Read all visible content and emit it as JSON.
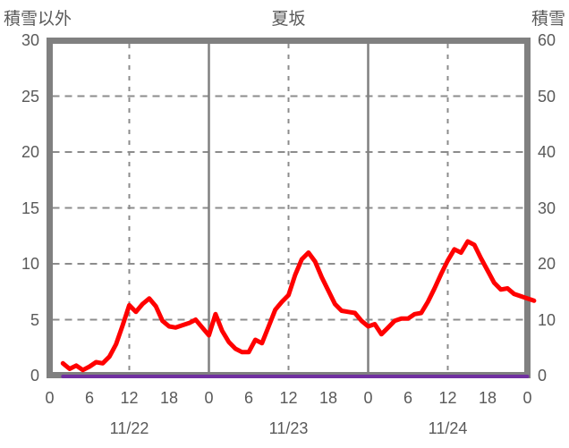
{
  "header": {
    "left_axis_title": "積雪以外",
    "chart_title": "夏坂",
    "right_axis_title": "積雪"
  },
  "colors": {
    "frame": "#808080",
    "grid": "#8c8c8c",
    "text": "#595959",
    "series_non_snow": "#ff0000",
    "series_snow": "#7030a0",
    "background": "#ffffff"
  },
  "chart_data": {
    "type": "line",
    "title": "夏坂",
    "left_axis": {
      "title": "積雪以外",
      "min": 0,
      "max": 30,
      "ticks": [
        30,
        25,
        20,
        15,
        10,
        5,
        0
      ]
    },
    "right_axis": {
      "title": "積雪",
      "min": 0,
      "max": 60,
      "ticks": [
        60,
        50,
        40,
        30,
        20,
        10,
        0
      ]
    },
    "x_axis": {
      "total_hours": 72,
      "hour_ticks": [
        {
          "hour": 0,
          "label": "0"
        },
        {
          "hour": 6,
          "label": "6"
        },
        {
          "hour": 12,
          "label": "12"
        },
        {
          "hour": 18,
          "label": "18"
        },
        {
          "hour": 24,
          "label": "0"
        },
        {
          "hour": 30,
          "label": "6"
        },
        {
          "hour": 36,
          "label": "12"
        },
        {
          "hour": 42,
          "label": "18"
        },
        {
          "hour": 48,
          "label": "0"
        },
        {
          "hour": 54,
          "label": "6"
        },
        {
          "hour": 60,
          "label": "12"
        },
        {
          "hour": 66,
          "label": "18"
        },
        {
          "hour": 72,
          "label": "0"
        }
      ],
      "day_labels": [
        {
          "label": "11/22",
          "center_hour": 12
        },
        {
          "label": "11/23",
          "center_hour": 36
        },
        {
          "label": "11/24",
          "center_hour": 60
        }
      ]
    },
    "grid": {
      "horizontal_dashed_left_values": [
        25,
        20,
        15,
        10,
        5
      ],
      "vertical_solid_hours": [
        24,
        48
      ],
      "vertical_dashed_hours": [
        12,
        36,
        60
      ]
    },
    "series": [
      {
        "name": "積雪以外",
        "axis": "left",
        "color": "#ff0000",
        "stroke_width": 5,
        "start_hour": 2,
        "step_hours": 1,
        "values": [
          1.1,
          0.6,
          0.9,
          0.5,
          0.8,
          1.2,
          1.1,
          1.7,
          2.8,
          4.5,
          6.3,
          5.7,
          6.4,
          6.9,
          6.2,
          4.9,
          4.4,
          4.3,
          4.5,
          4.7,
          5.0,
          4.3,
          3.6,
          5.5,
          4.0,
          3.0,
          2.4,
          2.1,
          2.1,
          3.2,
          2.9,
          4.4,
          5.9,
          6.6,
          7.2,
          9.0,
          10.4,
          11.0,
          10.2,
          8.8,
          7.6,
          6.4,
          5.8,
          5.7,
          5.6,
          4.9,
          4.4,
          4.6,
          3.7,
          4.3,
          4.9,
          5.1,
          5.1,
          5.5,
          5.6,
          6.6,
          7.8,
          9.1,
          10.3,
          11.3,
          11.0,
          12.0,
          11.7,
          10.5,
          9.4,
          8.3,
          7.7,
          7.8,
          7.3,
          7.1,
          6.9,
          6.7
        ]
      },
      {
        "name": "積雪",
        "axis": "right",
        "color": "#7030a0",
        "stroke_width": 4,
        "start_hour": 2,
        "step_hours": 1,
        "values": [
          0,
          0,
          0,
          0,
          0,
          0,
          0,
          0,
          0,
          0,
          0,
          0,
          0,
          0,
          0,
          0,
          0,
          0,
          0,
          0,
          0,
          0,
          0,
          0,
          0,
          0,
          0,
          0,
          0,
          0,
          0,
          0,
          0,
          0,
          0,
          0,
          0,
          0,
          0,
          0,
          0,
          0,
          0,
          0,
          0,
          0,
          0,
          0,
          0,
          0,
          0,
          0,
          0,
          0,
          0,
          0,
          0,
          0,
          0,
          0,
          0,
          0,
          0,
          0,
          0,
          0,
          0,
          0,
          0,
          0,
          0
        ]
      }
    ]
  }
}
